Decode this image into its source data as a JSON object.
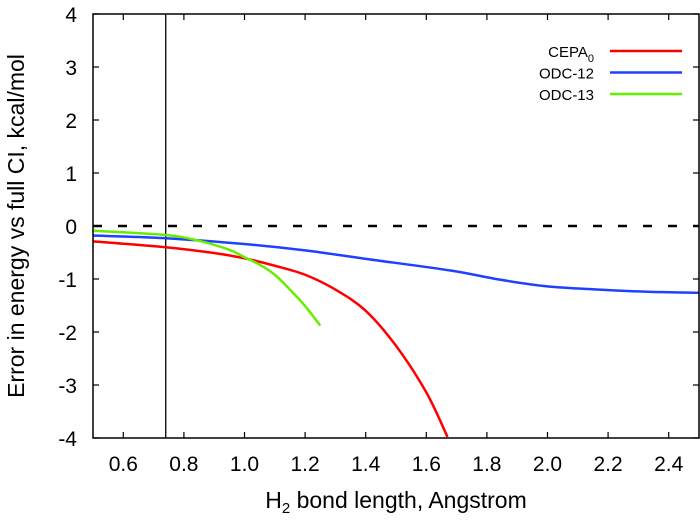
{
  "chart_data": {
    "type": "line",
    "xlabel": "H2 bond length, Angstrom",
    "xlabel_parts": {
      "pre": "H",
      "sub": "2",
      "post": " bond length, Angstrom"
    },
    "ylabel": "Error in energy vs full CI, kcal/mol",
    "xlim": [
      0.5,
      2.5
    ],
    "ylim": [
      -4,
      4
    ],
    "xticks": [
      0.6,
      0.8,
      1.0,
      1.2,
      1.4,
      1.6,
      1.8,
      2.0,
      2.2,
      2.4
    ],
    "xtick_labels": [
      "0.6",
      "0.8",
      "1.0",
      "1.2",
      "1.4",
      "1.6",
      "1.8",
      "2.0",
      "2.2",
      "2.4"
    ],
    "yticks": [
      -4,
      -3,
      -2,
      -1,
      0,
      1,
      2,
      3,
      4
    ],
    "ytick_labels": [
      "-4",
      "-3",
      "-2",
      "-1",
      "0",
      "1",
      "2",
      "3",
      "4"
    ],
    "grid": false,
    "legend_position": "top-right",
    "reference_lines": {
      "horizontal_dashed_y": 0,
      "vertical_x": 0.74
    },
    "series": [
      {
        "name": "CEPA0",
        "name_parts": {
          "base": "CEPA",
          "sub": "0"
        },
        "color": "#ff0000",
        "x": [
          0.5,
          0.74,
          0.9,
          1.0,
          1.1,
          1.2,
          1.3,
          1.4,
          1.5,
          1.6,
          1.67
        ],
        "y": [
          -0.29,
          -0.4,
          -0.51,
          -0.61,
          -0.75,
          -0.92,
          -1.2,
          -1.6,
          -2.26,
          -3.14,
          -3.98
        ]
      },
      {
        "name": "ODC-12",
        "color": "#2040ff",
        "x": [
          0.5,
          0.74,
          1.0,
          1.2,
          1.4,
          1.68,
          1.84,
          2.0,
          2.17,
          2.33,
          2.5
        ],
        "y": [
          -0.18,
          -0.23,
          -0.34,
          -0.46,
          -0.62,
          -0.84,
          -1.01,
          -1.14,
          -1.2,
          -1.24,
          -1.26
        ]
      },
      {
        "name": "ODC-13",
        "color": "#66ee00",
        "x": [
          0.5,
          0.74,
          0.85,
          0.95,
          1.0,
          1.05,
          1.1,
          1.15,
          1.2,
          1.25
        ],
        "y": [
          -0.09,
          -0.17,
          -0.28,
          -0.45,
          -0.59,
          -0.73,
          -0.92,
          -1.2,
          -1.51,
          -1.88
        ]
      }
    ]
  }
}
